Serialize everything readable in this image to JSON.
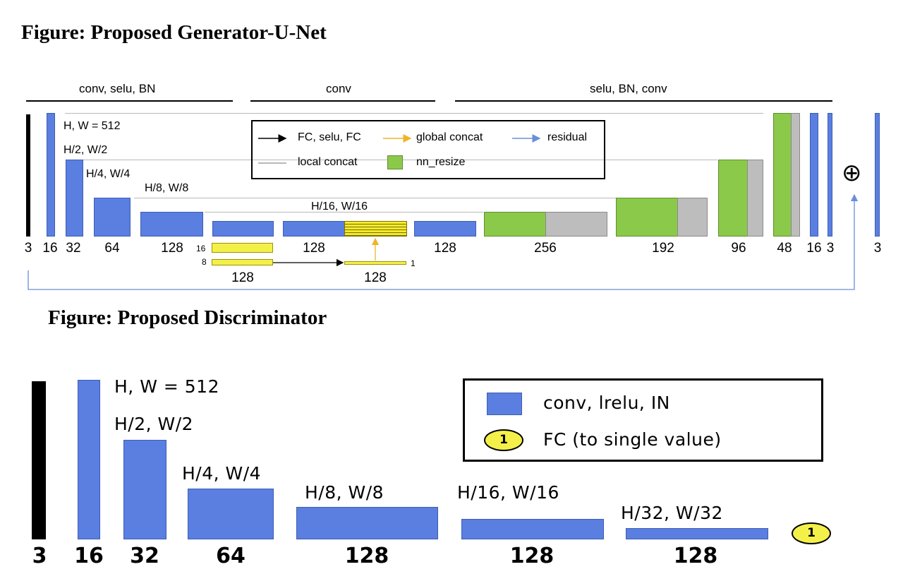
{
  "generator": {
    "title": "Figure: Proposed Generator-U-Net",
    "top_labels": [
      "conv, selu, BN",
      "conv",
      "selu, BN, conv"
    ],
    "resolution_labels": [
      "H, W = 512",
      "H/2, W/2",
      "H/4, W/4",
      "H/8, W/8",
      "H/16, W/16"
    ],
    "channel_labels": [
      "3",
      "16",
      "32",
      "64",
      "128",
      "128",
      "128",
      "256",
      "192",
      "96",
      "48",
      "16",
      "3",
      "3"
    ],
    "global_labels": {
      "small_16": "16",
      "small_8": "8",
      "small_1": "1",
      "bottom_left": "128",
      "bottom_right": "128"
    },
    "plus_symbol": "⊕",
    "legend": {
      "fc": "FC, selu, FC",
      "global_concat": "global concat",
      "residual": "residual",
      "local_concat": "local concat",
      "nn_resize": "nn_resize"
    },
    "colors": {
      "conv_block": "#5a7fe0",
      "nn_resize": "#8bc94a",
      "local_concat": "#bdbdbd",
      "global": "#f4f04a",
      "residual_arrow": "#6a8fd8",
      "global_arrow": "#f0b429"
    }
  },
  "discriminator": {
    "title": "Figure: Proposed Discriminator",
    "resolution_labels": [
      "H, W = 512",
      "H/2, W/2",
      "H/4, W/4",
      "H/8, W/8",
      "H/16, W/16",
      "H/32, W/32"
    ],
    "channel_labels": [
      "3",
      "16",
      "32",
      "64",
      "128",
      "128",
      "128"
    ],
    "fc_badge": "1",
    "legend": {
      "conv": "conv, lrelu, IN",
      "fc": "FC (to single value)",
      "fc_badge": "1"
    }
  }
}
